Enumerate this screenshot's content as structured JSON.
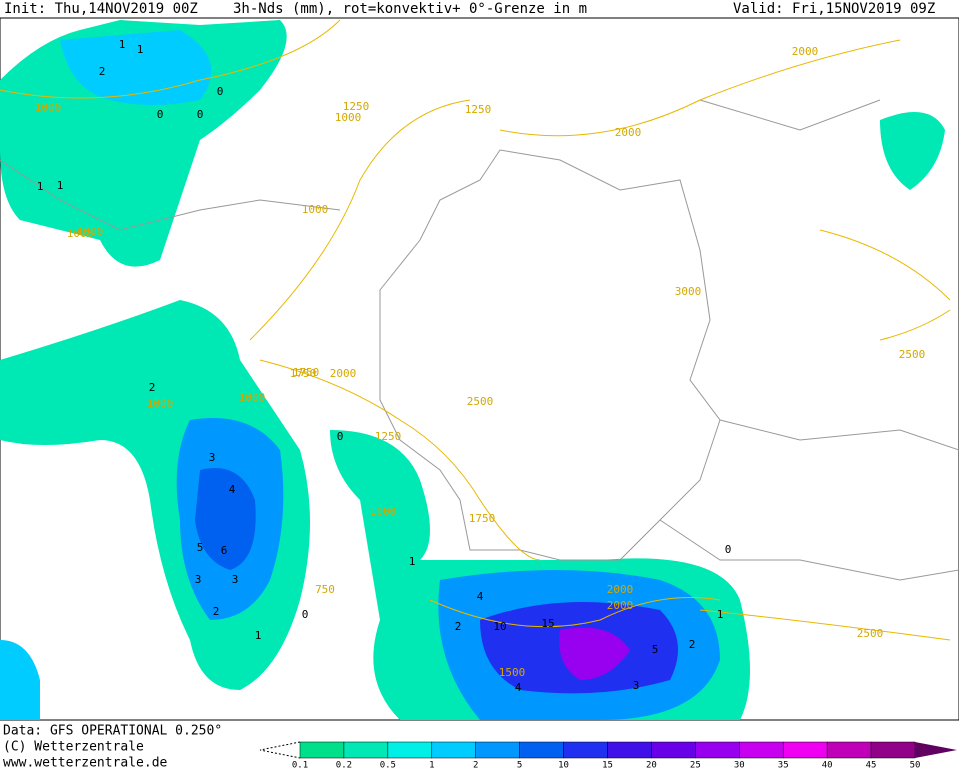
{
  "header": {
    "init": "Init: Thu,14NOV2019 00Z",
    "title": "3h-Nds (mm), rot=konvektiv+ 0°-Grenze in m",
    "valid": "Valid: Fri,15NOV2019 09Z"
  },
  "footer": {
    "lines": [
      "Data: GFS OPERATIONAL 0.250°",
      "(C) Wetterzentrale",
      "www.wetterzentrale.de"
    ]
  },
  "colorbar": {
    "labels": [
      0.1,
      0.2,
      0.5,
      1,
      2,
      5,
      10,
      15,
      20,
      25,
      30,
      35,
      40,
      45,
      50
    ],
    "colors": [
      "#00e08a",
      "#00e8b4",
      "#00f0e8",
      "#00ccff",
      "#0098ff",
      "#0060f0",
      "#2030f0",
      "#4010e8",
      "#6800e8",
      "#9800f0",
      "#c800f0",
      "#f000f0",
      "#c000b8",
      "#900088",
      "#600060"
    ]
  },
  "map": {
    "contour_labels": [
      "1000",
      "1250",
      "1000",
      "1000",
      "1000",
      "1250",
      "2000",
      "2000",
      "1000",
      "3000",
      "2500",
      "1750",
      "2000",
      "1000",
      "1000",
      "2500",
      "1750",
      "2000",
      "1250",
      "2000",
      "1750",
      "2500",
      "1500",
      "1000",
      "750"
    ],
    "precip_labels": [
      "1",
      "2",
      "1",
      "0",
      "0",
      "0",
      "1",
      "1",
      "2",
      "3",
      "4",
      "3",
      "5",
      "6",
      "3",
      "2",
      "1",
      "0",
      "0",
      "1",
      "2",
      "4",
      "10",
      "15",
      "5",
      "4",
      "3",
      "2",
      "0",
      "1"
    ]
  }
}
